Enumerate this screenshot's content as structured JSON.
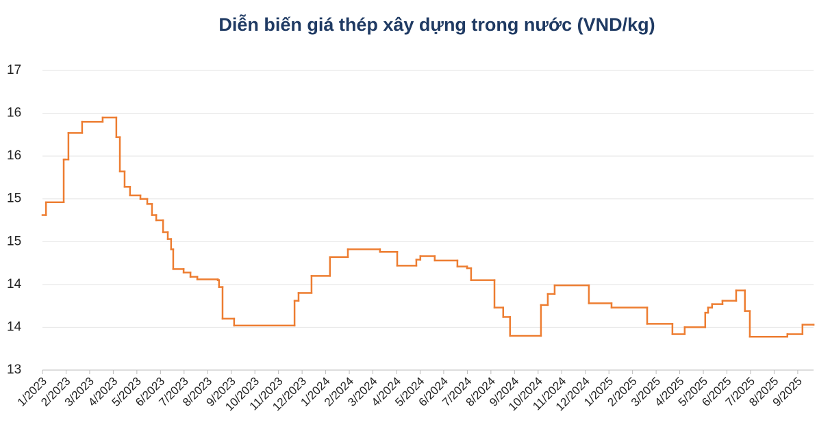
{
  "chart_data": {
    "type": "line",
    "step": "post",
    "title": "Diễn biến giá thép xây dựng trong nước (VND/kg)",
    "series": [
      {
        "color": "#ed7d31",
        "x": [
          0,
          0.15,
          0.9,
          0.96,
          1.1,
          1.68,
          2.55,
          3.13,
          3.28,
          3.48,
          3.71,
          4.15,
          4.44,
          4.64,
          4.82,
          5.11,
          5.31,
          5.45,
          5.54,
          5.98,
          6.27,
          6.56,
          7.43,
          7.48,
          7.63,
          8.12,
          10.68,
          10.85,
          11.4,
          12.18,
          12.94,
          14.3,
          15.03,
          15.84,
          16.01,
          16.62,
          17.58,
          17.99,
          18.16,
          19.15,
          19.52,
          19.81,
          21.12,
          21.41,
          21.7,
          23.15,
          24.11,
          25.62,
          26.69,
          27.21,
          28.08,
          28.2,
          28.37,
          28.81,
          29.39,
          29.76,
          29.97,
          31.56,
          32.2,
          32.67
        ],
        "values": [
          14.81,
          14.96,
          15.46,
          15.46,
          15.77,
          15.9,
          15.95,
          15.72,
          15.32,
          15.14,
          15.04,
          15.0,
          14.94,
          14.81,
          14.75,
          14.61,
          14.53,
          14.41,
          14.18,
          14.14,
          14.09,
          14.06,
          14.05,
          13.97,
          13.6,
          13.52,
          13.81,
          13.9,
          14.1,
          14.32,
          14.41,
          14.38,
          14.22,
          14.29,
          14.33,
          14.28,
          14.21,
          14.19,
          14.05,
          13.73,
          13.62,
          13.4,
          13.76,
          13.89,
          13.99,
          13.78,
          13.73,
          13.54,
          13.42,
          13.5,
          13.67,
          13.73,
          13.77,
          13.81,
          13.93,
          13.69,
          13.39,
          13.42,
          13.53,
          13.53
        ]
      }
    ],
    "xlim": [
      0,
      32.67
    ],
    "xticks": [
      {
        "value": 0,
        "label": "1/2023"
      },
      {
        "value": 1,
        "label": "2/2023"
      },
      {
        "value": 2,
        "label": "3/2023"
      },
      {
        "value": 3,
        "label": "4/2023"
      },
      {
        "value": 4,
        "label": "5/2023"
      },
      {
        "value": 5,
        "label": "6/2023"
      },
      {
        "value": 6,
        "label": "7/2023"
      },
      {
        "value": 7,
        "label": "8/2023"
      },
      {
        "value": 8,
        "label": "9/2023"
      },
      {
        "value": 9,
        "label": "10/2023"
      },
      {
        "value": 10,
        "label": "11/2023"
      },
      {
        "value": 11,
        "label": "12/2023"
      },
      {
        "value": 12,
        "label": "1/2024"
      },
      {
        "value": 13,
        "label": "2/2024"
      },
      {
        "value": 14,
        "label": "3/2024"
      },
      {
        "value": 15,
        "label": "4/2024"
      },
      {
        "value": 16,
        "label": "5/2024"
      },
      {
        "value": 17,
        "label": "6/2024"
      },
      {
        "value": 18,
        "label": "7/2024"
      },
      {
        "value": 19,
        "label": "8/2024"
      },
      {
        "value": 20,
        "label": "9/2024"
      },
      {
        "value": 21,
        "label": "10/2024"
      },
      {
        "value": 22,
        "label": "11/2024"
      },
      {
        "value": 23,
        "label": "12/2024"
      },
      {
        "value": 24,
        "label": "1/2025"
      },
      {
        "value": 25,
        "label": "2/2025"
      },
      {
        "value": 26,
        "label": "3/2025"
      },
      {
        "value": 27,
        "label": "4/2025"
      },
      {
        "value": 28,
        "label": "5/2025"
      },
      {
        "value": 29,
        "label": "6/2025"
      },
      {
        "value": 30,
        "label": "7/2025"
      },
      {
        "value": 31,
        "label": "8/2025"
      },
      {
        "value": 32,
        "label": "9/2025"
      }
    ],
    "ylim": [
      13,
      16.5
    ],
    "yticks": [
      13,
      {
        "value": 13.5,
        "label": "14"
      },
      14,
      {
        "value": 14.5,
        "label": "15"
      },
      15,
      {
        "value": 15.5,
        "label": "16"
      },
      16,
      {
        "value": 16.5,
        "label": "17"
      }
    ],
    "grid": true
  }
}
